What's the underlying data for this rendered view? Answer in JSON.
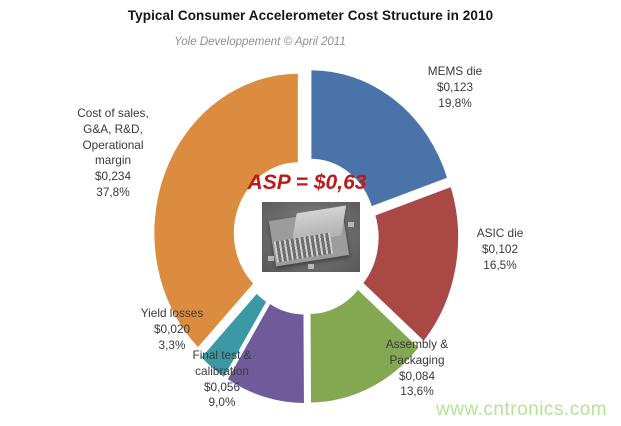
{
  "header": {
    "title": "Typical Consumer Accelerometer Cost Structure in 2010",
    "subtitle": "Yole Developpement © April 2011"
  },
  "chart_data": {
    "type": "pie",
    "style": "exploded-donut",
    "title": "Typical Consumer Accelerometer Cost Structure in 2010",
    "center_label": "ASP = $0,63",
    "center_image": "mems-chip-sem-photo",
    "legend_position": "none",
    "labels_outside": true,
    "start_angle_deg": 0,
    "direction": "clockwise",
    "slices": [
      {
        "label": "MEMS die",
        "value": "$0,123",
        "pct": "19,8%",
        "pct_num": 19.8,
        "color": "#4a73a9"
      },
      {
        "label": "ASIC die",
        "value": "$0,102",
        "pct": "16,5%",
        "pct_num": 16.5,
        "color": "#a94845"
      },
      {
        "label": "Assembly &\nPackaging",
        "value": "$0,084",
        "pct": "13,6%",
        "pct_num": 13.6,
        "color": "#83a851"
      },
      {
        "label": "Final test &\ncalibration",
        "value": "$0,056",
        "pct": "9,0%",
        "pct_num": 9.0,
        "color": "#6f5b9b"
      },
      {
        "label": "Yield losses",
        "value": "$0,020",
        "pct": "3,3%",
        "pct_num": 3.3,
        "color": "#3b99a6"
      },
      {
        "label": "Cost of sales,\nG&A, R&D,\nOperational\nmargin",
        "value": "$0,234",
        "pct": "37,8%",
        "pct_num": 37.8,
        "color": "#dc8c3e"
      }
    ]
  },
  "watermark": {
    "text": "www.cntronics.com",
    "color": "#b5e395"
  },
  "colors": {
    "background": "#ffffff",
    "title_text": "#151515",
    "subtitle_text": "#8f8f8f",
    "label_text": "#3a3a3a",
    "asp_text": "#be1a1a"
  }
}
